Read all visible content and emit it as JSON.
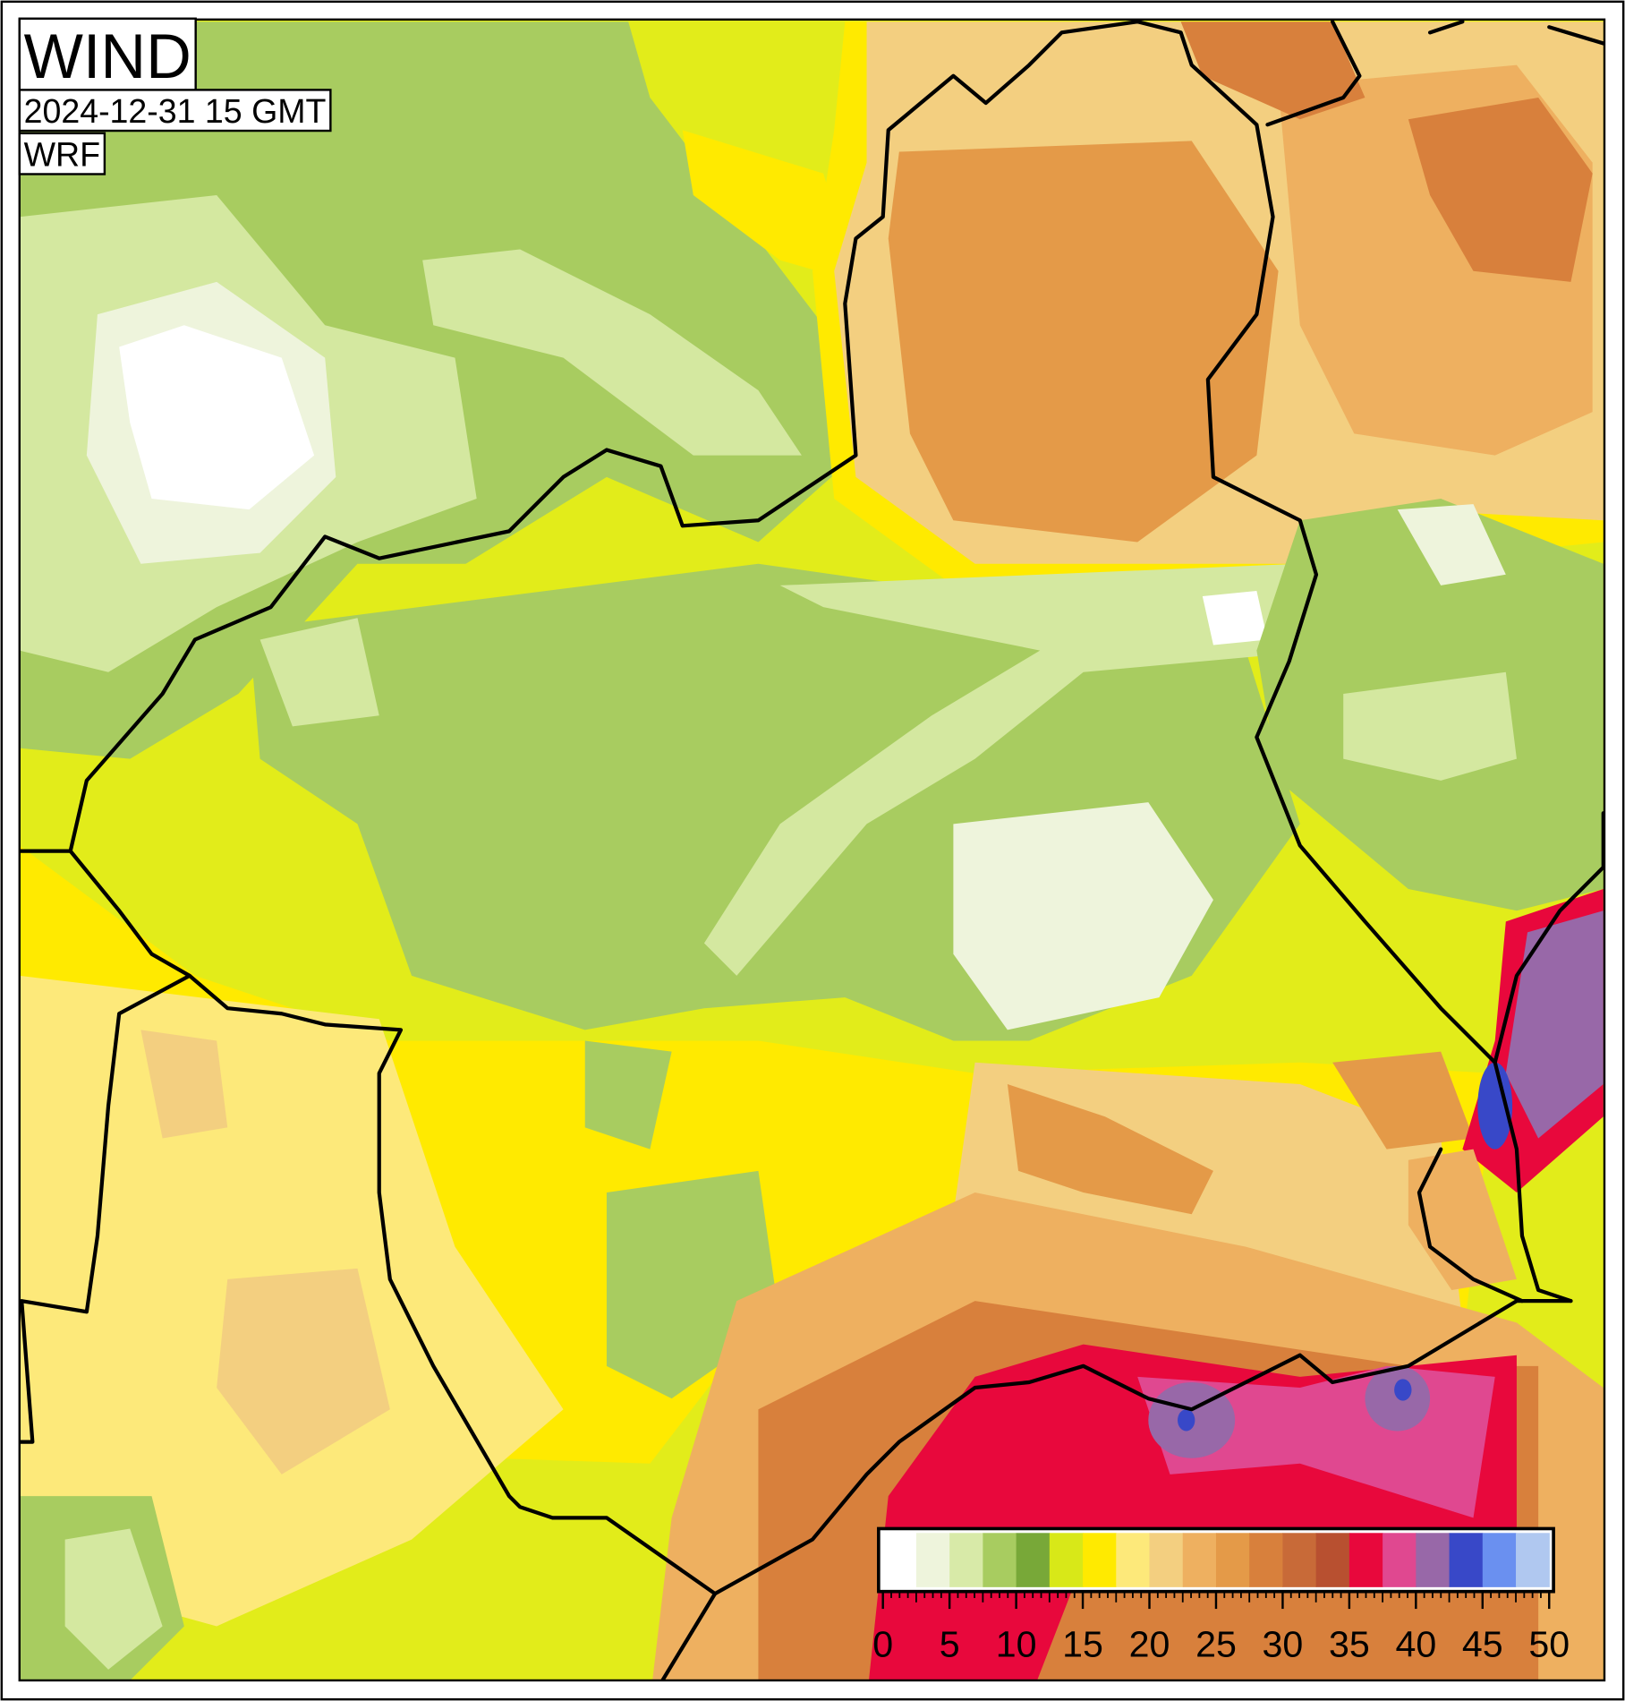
{
  "header": {
    "title": "WIND",
    "timestamp": "2024-12-31 15 GMT",
    "model": "WRF"
  },
  "colorbar": {
    "range": [
      0,
      50
    ],
    "ticks": [
      0,
      5,
      10,
      15,
      20,
      25,
      30,
      35,
      40,
      45,
      50
    ],
    "colors": [
      "#ffffff",
      "#eef4dc",
      "#d8eaa8",
      "#a8cc60",
      "#78a838",
      "#d8e818",
      "#ffea00",
      "#fde97a",
      "#f3cf80",
      "#eeb060",
      "#e49a48",
      "#d8803c",
      "#c86a38",
      "#b85030",
      "#e8083c",
      "#e04890",
      "#9868a8",
      "#3848c8",
      "#6a90f0",
      "#b0c8f0"
    ]
  }
}
